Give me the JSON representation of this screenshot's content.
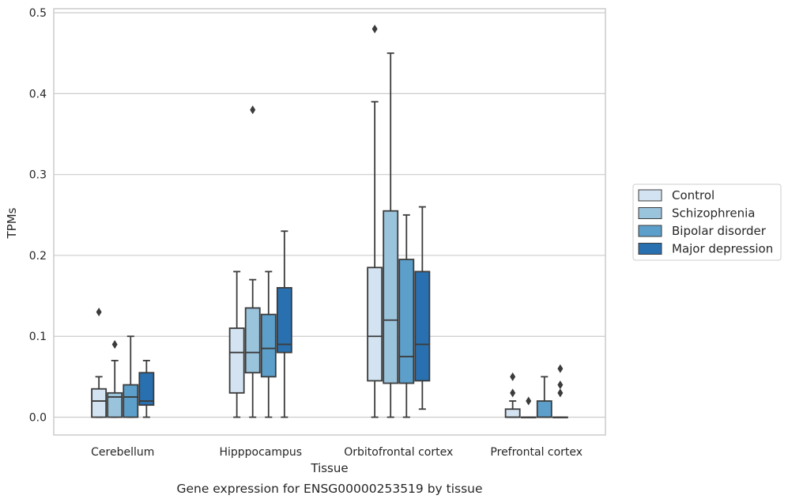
{
  "caption": "Gene expression for ENSG00000253519 by tissue",
  "chart_data": {
    "type": "boxplot",
    "xlabel": "Tissue",
    "ylabel": "TPMs",
    "ylim": [
      -0.022,
      0.505
    ],
    "yticks": [
      0.0,
      0.1,
      0.2,
      0.3,
      0.4,
      0.5
    ],
    "ytick_labels": [
      "0.0",
      "0.1",
      "0.2",
      "0.3",
      "0.4",
      "0.5"
    ],
    "grid": "horizontal",
    "legend_position": "right-center, outside",
    "categories": [
      "Cerebellum",
      "Hipppocampus",
      "Orbitofrontal cortex",
      "Prefrontal cortex"
    ],
    "series": [
      {
        "name": "Control",
        "color": "#d3e3f1",
        "boxes": [
          {
            "whisker_low": 0.0,
            "q1": 0.0,
            "median": 0.02,
            "q3": 0.035,
            "whisker_high": 0.05,
            "outliers": [
              0.13
            ]
          },
          {
            "whisker_low": 0.0,
            "q1": 0.03,
            "median": 0.08,
            "q3": 0.11,
            "whisker_high": 0.18,
            "outliers": []
          },
          {
            "whisker_low": 0.0,
            "q1": 0.045,
            "median": 0.1,
            "q3": 0.185,
            "whisker_high": 0.39,
            "outliers": [
              0.48
            ]
          },
          {
            "whisker_low": 0.0,
            "q1": 0.0,
            "median": 0.0,
            "q3": 0.01,
            "whisker_high": 0.02,
            "outliers": [
              0.03,
              0.05
            ]
          }
        ]
      },
      {
        "name": "Schizophrenia",
        "color": "#9ac3dc",
        "boxes": [
          {
            "whisker_low": 0.0,
            "q1": 0.0,
            "median": 0.025,
            "q3": 0.03,
            "whisker_high": 0.07,
            "outliers": [
              0.09
            ]
          },
          {
            "whisker_low": 0.0,
            "q1": 0.055,
            "median": 0.08,
            "q3": 0.135,
            "whisker_high": 0.17,
            "outliers": [
              0.38
            ]
          },
          {
            "whisker_low": 0.0,
            "q1": 0.042,
            "median": 0.12,
            "q3": 0.255,
            "whisker_high": 0.45,
            "outliers": []
          },
          {
            "whisker_low": 0.0,
            "q1": 0.0,
            "median": 0.0,
            "q3": 0.0,
            "whisker_high": 0.0,
            "outliers": [
              0.02
            ]
          }
        ]
      },
      {
        "name": "Bipolar disorder",
        "color": "#5c9fca",
        "boxes": [
          {
            "whisker_low": 0.0,
            "q1": 0.0,
            "median": 0.025,
            "q3": 0.04,
            "whisker_high": 0.1,
            "outliers": []
          },
          {
            "whisker_low": 0.0,
            "q1": 0.05,
            "median": 0.085,
            "q3": 0.127,
            "whisker_high": 0.18,
            "outliers": []
          },
          {
            "whisker_low": 0.0,
            "q1": 0.042,
            "median": 0.075,
            "q3": 0.195,
            "whisker_high": 0.25,
            "outliers": []
          },
          {
            "whisker_low": 0.0,
            "q1": 0.0,
            "median": 0.0,
            "q3": 0.02,
            "whisker_high": 0.05,
            "outliers": []
          }
        ]
      },
      {
        "name": "Major depression",
        "color": "#2970b0",
        "boxes": [
          {
            "whisker_low": 0.0,
            "q1": 0.015,
            "median": 0.02,
            "q3": 0.055,
            "whisker_high": 0.07,
            "outliers": []
          },
          {
            "whisker_low": 0.0,
            "q1": 0.08,
            "median": 0.09,
            "q3": 0.16,
            "whisker_high": 0.23,
            "outliers": []
          },
          {
            "whisker_low": 0.01,
            "q1": 0.045,
            "median": 0.09,
            "q3": 0.18,
            "whisker_high": 0.26,
            "outliers": []
          },
          {
            "whisker_low": 0.0,
            "q1": 0.0,
            "median": 0.0,
            "q3": 0.0,
            "whisker_high": 0.0,
            "outliers": [
              0.03,
              0.04,
              0.06
            ]
          }
        ]
      }
    ]
  }
}
